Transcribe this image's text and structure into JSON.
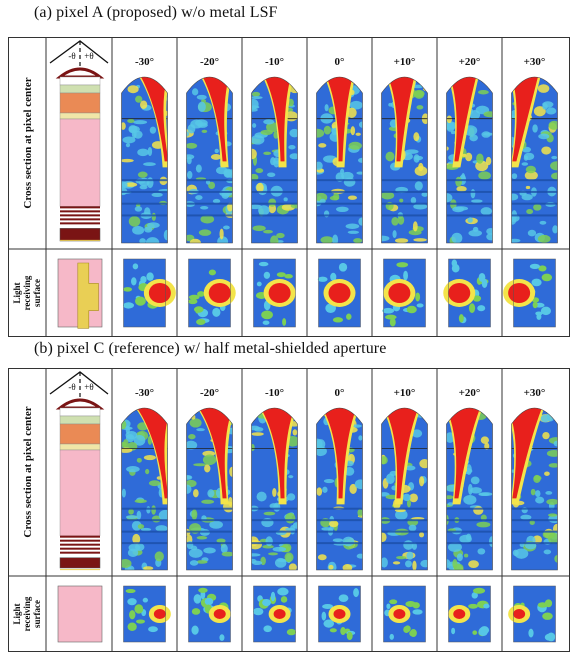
{
  "figure_a": {
    "caption": "(a)   pixel A (proposed) w/o metal LSF",
    "row_labels": {
      "cross_section": "Cross section at pixel center",
      "light_surface": [
        "Light",
        "receiving",
        "surface"
      ]
    },
    "angle_markers": {
      "minus": "-θ",
      "plus": "+θ"
    },
    "angles": [
      "-30°",
      "-20°",
      "-10°",
      "0°",
      "+10°",
      "+20°",
      "+30°"
    ]
  },
  "figure_b": {
    "caption": "(b)   pixel C (reference) w/ half metal-shielded aperture",
    "row_labels": {
      "cross_section": "Cross section at pixel center",
      "light_surface": [
        "Light",
        "receiving",
        "surface"
      ]
    },
    "angle_markers": {
      "minus": "-θ",
      "plus": "+θ"
    },
    "angles": [
      "-30°",
      "-20°",
      "-10°",
      "0°",
      "+10°",
      "+20°",
      "+30°"
    ]
  },
  "colors": {
    "field_background": "#2f6bd8",
    "field_mid": "#57c7e6",
    "field_green": "#7ccf55",
    "field_yellow": "#f3e44a",
    "field_hot": "#e8201c",
    "pixel_pink": "#f6b8c8",
    "pixel_orange": "#ea8a55",
    "pixel_darkred": "#7a1414",
    "pixel_yellow": "#e9cf55"
  },
  "icons": [
    "incidence-angle-icon",
    "microlens-icon"
  ]
}
